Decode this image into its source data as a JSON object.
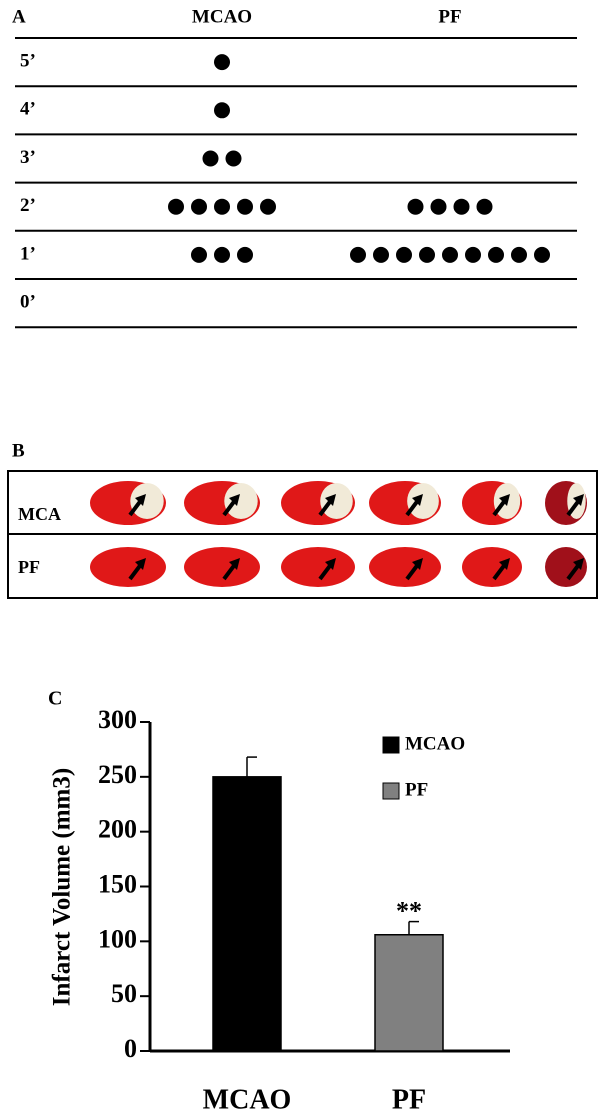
{
  "panel_a": {
    "label": "A",
    "columns": [
      "MCAO",
      "PF"
    ],
    "rows": [
      {
        "score": "5’",
        "counts": [
          1,
          0
        ]
      },
      {
        "score": "4’",
        "counts": [
          1,
          0
        ]
      },
      {
        "score": "3’",
        "counts": [
          2,
          0
        ]
      },
      {
        "score": "2’",
        "counts": [
          5,
          4
        ]
      },
      {
        "score": "1’",
        "counts": [
          3,
          9
        ]
      },
      {
        "score": "0’",
        "counts": [
          0,
          0
        ]
      }
    ]
  },
  "panel_b": {
    "label": "B",
    "rows": [
      "MCA",
      "PF"
    ]
  },
  "chart_data": {
    "type": "bar",
    "label": "C",
    "ylabel": "Infarct Volume (mm3)",
    "categories": [
      "MCAO",
      "PF"
    ],
    "values": [
      250,
      106
    ],
    "errors": [
      18,
      12
    ],
    "colors": [
      "#000000",
      "#808080"
    ],
    "annotation": "**",
    "ylim": [
      0,
      300
    ],
    "yticks": [
      0,
      50,
      100,
      150,
      200,
      250,
      300
    ],
    "legend": "upper right"
  }
}
